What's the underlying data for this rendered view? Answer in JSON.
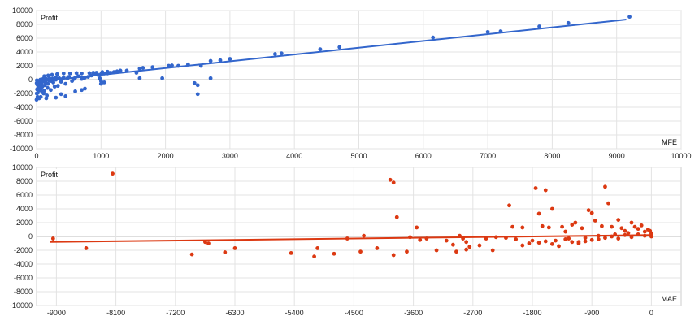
{
  "chart_data": [
    {
      "type": "scatter",
      "title": "",
      "xlabel": "MFE",
      "ylabel": "Profit",
      "xlim": [
        0,
        10000
      ],
      "ylim": [
        -10000,
        10000
      ],
      "x_ticks": [
        0,
        1000,
        2000,
        3000,
        4000,
        5000,
        6000,
        7000,
        8000,
        9000,
        10000
      ],
      "y_ticks": [
        10000,
        8000,
        6000,
        4000,
        2000,
        0,
        -2000,
        -4000,
        -6000,
        -8000,
        -10000
      ],
      "x_tick_labels": [
        "0",
        "1000",
        "2000",
        "3000",
        "4000",
        "5000",
        "6000",
        "7000",
        "8000",
        "9000",
        "10000"
      ],
      "y_tick_labels": [
        "10000",
        "8000",
        "6000",
        "4000",
        "2000",
        "0",
        "-2000",
        "-4000",
        "-6000",
        "-8000",
        "-10000"
      ],
      "color": "#3366cc",
      "grid": true,
      "trendline": {
        "x": [
          0,
          9150
        ],
        "y": [
          -300,
          8700
        ]
      },
      "points": [
        [
          9200,
          9100
        ],
        [
          8250,
          8200
        ],
        [
          7800,
          7700
        ],
        [
          7200,
          7000
        ],
        [
          7000,
          6900
        ],
        [
          6150,
          6100
        ],
        [
          4700,
          4700
        ],
        [
          4400,
          4400
        ],
        [
          3800,
          3800
        ],
        [
          3700,
          3700
        ],
        [
          3000,
          3000
        ],
        [
          2850,
          2800
        ],
        [
          2700,
          2700
        ],
        [
          2550,
          2000
        ],
        [
          2700,
          200
        ],
        [
          2450,
          -500
        ],
        [
          2500,
          -800
        ],
        [
          2500,
          -2100
        ],
        [
          2350,
          2200
        ],
        [
          2200,
          2000
        ],
        [
          2100,
          2050
        ],
        [
          2050,
          2000
        ],
        [
          1950,
          200
        ],
        [
          1800,
          1800
        ],
        [
          1600,
          1600
        ],
        [
          1650,
          1700
        ],
        [
          1600,
          200
        ],
        [
          1550,
          1000
        ],
        [
          1400,
          1300
        ],
        [
          1300,
          1300
        ],
        [
          1250,
          1200
        ],
        [
          1200,
          1100
        ],
        [
          1150,
          1000
        ],
        [
          1100,
          900
        ],
        [
          1050,
          900
        ],
        [
          1000,
          800
        ],
        [
          950,
          700
        ],
        [
          980,
          200
        ],
        [
          1000,
          -200
        ],
        [
          1000,
          -600
        ],
        [
          900,
          800
        ],
        [
          850,
          600
        ],
        [
          800,
          400
        ],
        [
          750,
          300
        ],
        [
          720,
          200
        ],
        [
          700,
          100
        ],
        [
          650,
          500
        ],
        [
          600,
          300
        ],
        [
          580,
          100
        ],
        [
          550,
          -200
        ],
        [
          500,
          400
        ],
        [
          480,
          200
        ],
        [
          450,
          -600
        ],
        [
          420,
          300
        ],
        [
          400,
          100
        ],
        [
          380,
          -300
        ],
        [
          350,
          200
        ],
        [
          330,
          -900
        ],
        [
          300,
          300
        ],
        [
          300,
          0
        ],
        [
          280,
          -1000
        ],
        [
          260,
          -400
        ],
        [
          250,
          150
        ],
        [
          230,
          -200
        ],
        [
          220,
          -1500
        ],
        [
          200,
          200
        ],
        [
          190,
          -100
        ],
        [
          180,
          -600
        ],
        [
          170,
          -1200
        ],
        [
          160,
          -2300
        ],
        [
          150,
          100
        ],
        [
          140,
          -400
        ],
        [
          130,
          -800
        ],
        [
          120,
          -1600
        ],
        [
          110,
          -2000
        ],
        [
          100,
          100
        ],
        [
          95,
          -300
        ],
        [
          90,
          -1000
        ],
        [
          85,
          -1800
        ],
        [
          80,
          -200
        ],
        [
          75,
          -600
        ],
        [
          70,
          -1300
        ],
        [
          65,
          -2500
        ],
        [
          60,
          0
        ],
        [
          55,
          -400
        ],
        [
          50,
          -900
        ],
        [
          45,
          -1500
        ],
        [
          40,
          -2700
        ],
        [
          35,
          -200
        ],
        [
          30,
          -600
        ],
        [
          25,
          -1100
        ],
        [
          20,
          -1900
        ],
        [
          15,
          -2500
        ],
        [
          12,
          -300
        ],
        [
          10,
          -700
        ],
        [
          8,
          -1400
        ],
        [
          5,
          -100
        ],
        [
          3,
          -2000
        ],
        [
          2,
          -500
        ],
        [
          0,
          -2900
        ],
        [
          600,
          -1700
        ],
        [
          700,
          -1500
        ],
        [
          750,
          -1300
        ],
        [
          1050,
          -400
        ],
        [
          450,
          -2400
        ],
        [
          380,
          -2100
        ],
        [
          300,
          -2600
        ],
        [
          150,
          -2700
        ],
        [
          120,
          500
        ],
        [
          180,
          600
        ],
        [
          240,
          700
        ],
        [
          320,
          800
        ],
        [
          420,
          900
        ],
        [
          520,
          900
        ],
        [
          620,
          950
        ],
        [
          700,
          900
        ],
        [
          820,
          950
        ],
        [
          880,
          1000
        ],
        [
          930,
          1000
        ],
        [
          1020,
          1100
        ],
        [
          1100,
          1150
        ]
      ]
    },
    {
      "type": "scatter",
      "title": "",
      "xlabel": "MAE",
      "ylabel": "Profit",
      "xlim": [
        -9300,
        450
      ],
      "ylim": [
        -10000,
        10000
      ],
      "x_ticks": [
        -9000,
        -8100,
        -7200,
        -6300,
        -5400,
        -4500,
        -3600,
        -2700,
        -1800,
        -900,
        0
      ],
      "y_ticks": [
        10000,
        8000,
        6000,
        4000,
        2000,
        0,
        -2000,
        -4000,
        -6000,
        -8000,
        -10000
      ],
      "x_tick_labels": [
        "-9000",
        "-8100",
        "-7200",
        "-6300",
        "-5400",
        "-4500",
        "-3600",
        "-2700",
        "-1800",
        "-900",
        "0"
      ],
      "y_tick_labels": [
        "10000",
        "8000",
        "6000",
        "4000",
        "2000",
        "0",
        "-2000",
        "-4000",
        "-6000",
        "-8000",
        "-10000"
      ],
      "color": "#dc3912",
      "grid": true,
      "trendline": {
        "x": [
          -9100,
          0
        ],
        "y": [
          -800,
          200
        ]
      },
      "points": [
        [
          -9050,
          -300
        ],
        [
          -8550,
          -1700
        ],
        [
          -8150,
          9100
        ],
        [
          -6950,
          -2600
        ],
        [
          -6750,
          -800
        ],
        [
          -6700,
          -1000
        ],
        [
          -6450,
          -2300
        ],
        [
          -6300,
          -1700
        ],
        [
          -5450,
          -2400
        ],
        [
          -5100,
          -2900
        ],
        [
          -5050,
          -1700
        ],
        [
          -4800,
          -2500
        ],
        [
          -4400,
          -2200
        ],
        [
          -4350,
          100
        ],
        [
          -4150,
          -1700
        ],
        [
          -3950,
          8200
        ],
        [
          -3900,
          7800
        ],
        [
          -3850,
          2800
        ],
        [
          -3900,
          -2700
        ],
        [
          -3700,
          -2200
        ],
        [
          -3550,
          1300
        ],
        [
          -3500,
          -500
        ],
        [
          -3400,
          -300
        ],
        [
          -3250,
          -2000
        ],
        [
          -3100,
          -600
        ],
        [
          -3000,
          -1200
        ],
        [
          -2950,
          -2200
        ],
        [
          -2900,
          100
        ],
        [
          -2850,
          -300
        ],
        [
          -2800,
          -800
        ],
        [
          -2750,
          -1500
        ],
        [
          -2600,
          -1300
        ],
        [
          -2500,
          -300
        ],
        [
          -2400,
          -2000
        ],
        [
          -2350,
          -100
        ],
        [
          -2200,
          -200
        ],
        [
          -2050,
          -400
        ],
        [
          -1950,
          -1300
        ],
        [
          -2150,
          4500
        ],
        [
          -2100,
          1400
        ],
        [
          -1950,
          1300
        ],
        [
          -1850,
          -1000
        ],
        [
          -1800,
          -600
        ],
        [
          -1750,
          7000
        ],
        [
          -1700,
          3300
        ],
        [
          -1650,
          1500
        ],
        [
          -1600,
          6700
        ],
        [
          -1550,
          1300
        ],
        [
          -1500,
          4000
        ],
        [
          -1450,
          -600
        ],
        [
          -1400,
          -1400
        ],
        [
          -1350,
          1400
        ],
        [
          -1300,
          700
        ],
        [
          -1250,
          -300
        ],
        [
          -1200,
          1700
        ],
        [
          -1150,
          2000
        ],
        [
          -1100,
          -800
        ],
        [
          -1050,
          1200
        ],
        [
          -1000,
          -200
        ],
        [
          -950,
          3800
        ],
        [
          -900,
          3400
        ],
        [
          -850,
          2300
        ],
        [
          -800,
          -400
        ],
        [
          -750,
          1500
        ],
        [
          -700,
          7200
        ],
        [
          -650,
          4800
        ],
        [
          -600,
          1400
        ],
        [
          -550,
          300
        ],
        [
          -500,
          2400
        ],
        [
          -450,
          1200
        ],
        [
          -400,
          800
        ],
        [
          -350,
          500
        ],
        [
          -300,
          2000
        ],
        [
          -250,
          1400
        ],
        [
          -200,
          1100
        ],
        [
          -150,
          1600
        ],
        [
          -100,
          700
        ],
        [
          -50,
          1000
        ],
        [
          -20,
          800
        ],
        [
          -1700,
          -900
        ],
        [
          -1600,
          -700
        ],
        [
          -1500,
          -1100
        ],
        [
          -1300,
          -400
        ],
        [
          -1200,
          -800
        ],
        [
          -1100,
          -1000
        ],
        [
          -1000,
          -700
        ],
        [
          -900,
          -500
        ],
        [
          -800,
          100
        ],
        [
          -700,
          -200
        ],
        [
          -600,
          0
        ],
        [
          -500,
          -300
        ],
        [
          -400,
          200
        ],
        [
          -300,
          -100
        ],
        [
          -200,
          300
        ],
        [
          -100,
          100
        ],
        [
          0,
          400
        ],
        [
          0,
          0
        ],
        [
          -3650,
          -100
        ],
        [
          -4600,
          -300
        ],
        [
          -2800,
          -1900
        ]
      ]
    }
  ]
}
